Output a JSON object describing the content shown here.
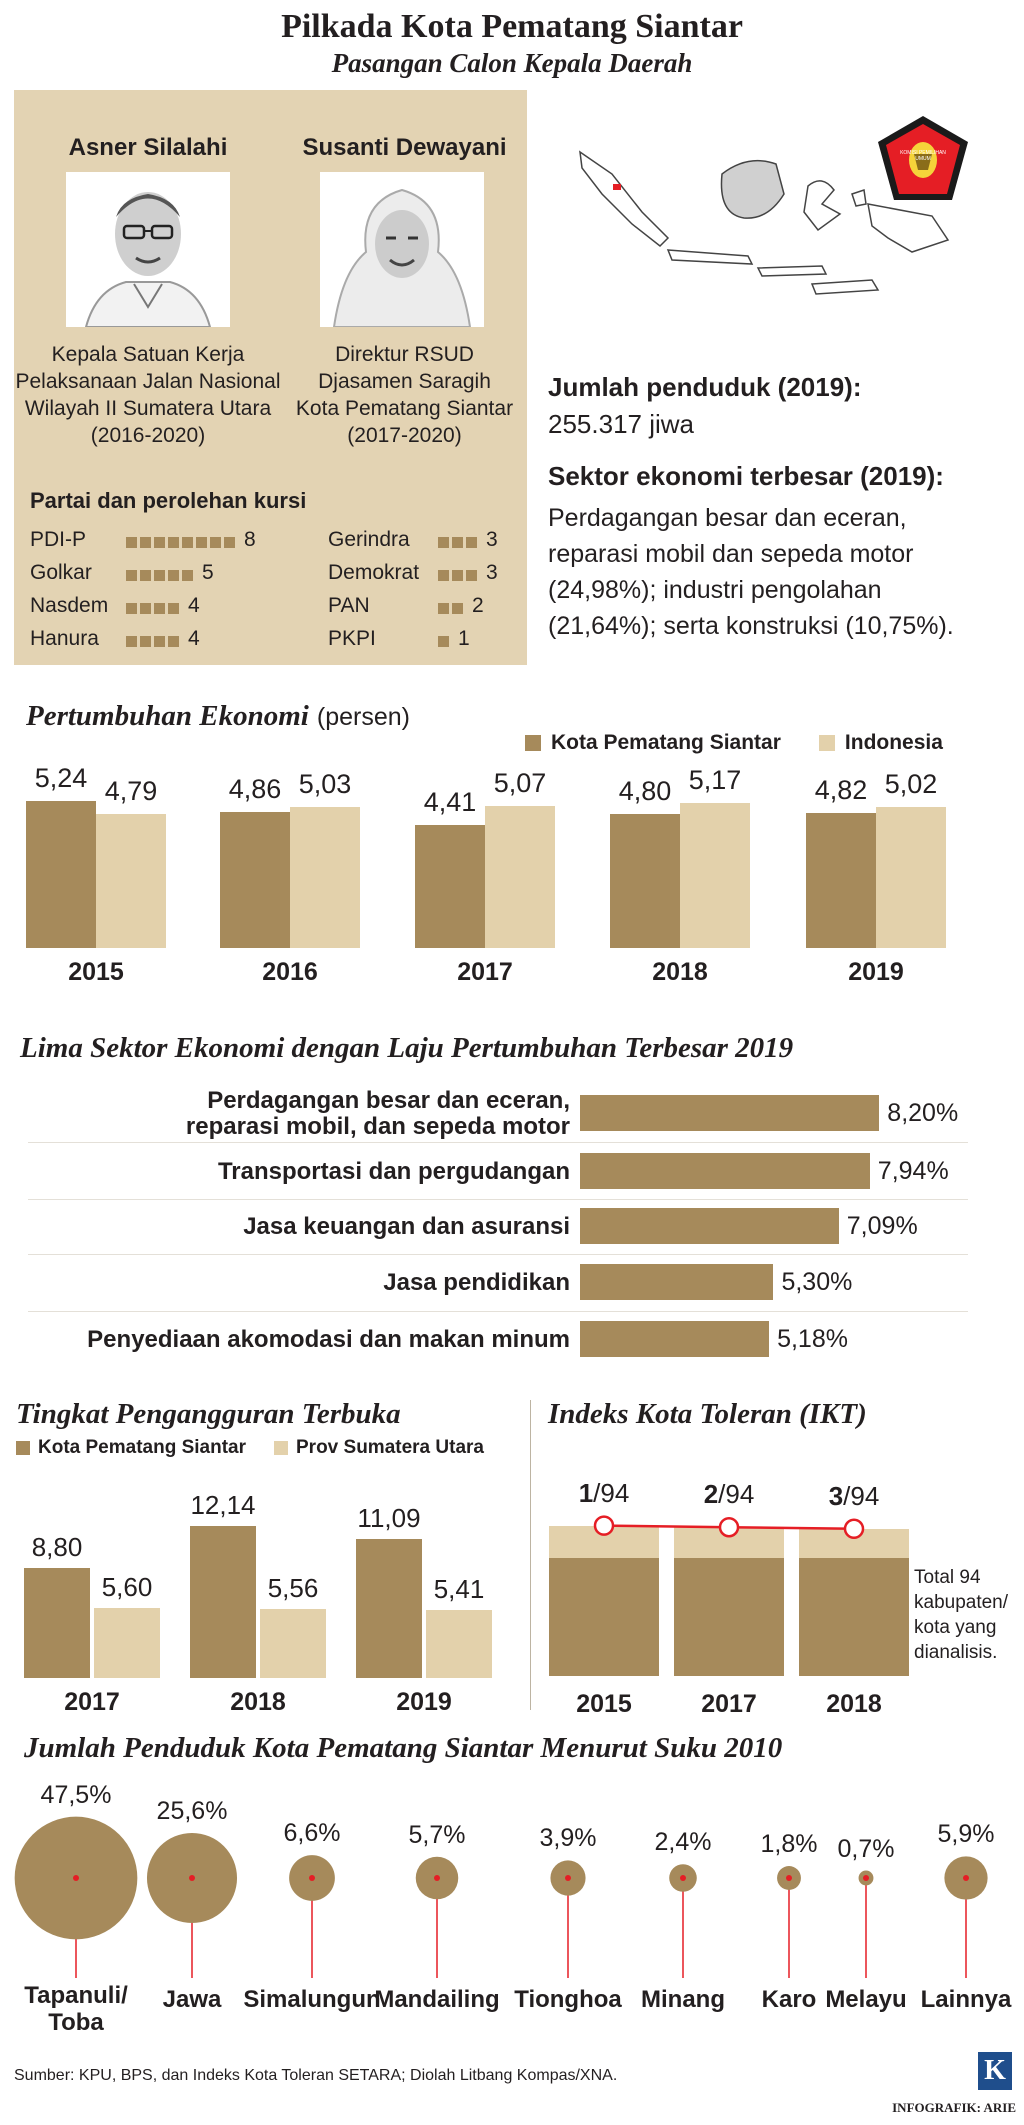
{
  "header": {
    "title": "Pilkada Kota Pematang Siantar",
    "subtitle": "Pasangan Calon Kepala Daerah"
  },
  "candidates": [
    {
      "name": "Asner Silalahi",
      "role_lines": [
        "Kepala Satuan Kerja",
        "Pelaksanaan Jalan Nasional",
        "Wilayah II Sumatera Utara",
        "(2016-2020)"
      ]
    },
    {
      "name": "Susanti Dewayani",
      "role_lines": [
        "Direktur RSUD",
        "Djasamen Saragih",
        "Kota Pematang Siantar",
        "(2017-2020)"
      ]
    }
  ],
  "parties": {
    "title": "Partai dan perolehan kursi",
    "items": [
      {
        "name": "PDI-P",
        "seats": 8
      },
      {
        "name": "Golkar",
        "seats": 5
      },
      {
        "name": "Nasdem",
        "seats": 4
      },
      {
        "name": "Hanura",
        "seats": 4
      },
      {
        "name": "Gerindra",
        "seats": 3
      },
      {
        "name": "Demokrat",
        "seats": 3
      },
      {
        "name": "PAN",
        "seats": 2
      },
      {
        "name": "PKPI",
        "seats": 1
      }
    ]
  },
  "logo": {
    "text": "KOMISI PEMILIHAN UMUM"
  },
  "population": {
    "label": "Jumlah penduduk (2019):",
    "value": "255.317 jiwa"
  },
  "economy": {
    "label": "Sektor ekonomi terbesar (2019):",
    "lines": [
      "Perdagangan besar dan eceran,",
      "reparasi mobil dan sepeda motor",
      "(24,98%); industri pengolahan",
      "(21,64%); serta konstruksi (10,75%)."
    ]
  },
  "growth": {
    "title": "Pertumbuhan Ekonomi",
    "unit": "(persen)",
    "legend": [
      "Kota Pematang Siantar",
      "Indonesia"
    ]
  },
  "sectors_section": {
    "title": "Lima Sektor Ekonomi dengan Laju Pertumbuhan Terbesar 2019"
  },
  "unemployment": {
    "title": "Tingkat Pengangguran Terbuka",
    "legend": [
      "Kota Pematang Siantar",
      "Prov Sumatera Utara"
    ]
  },
  "ikt": {
    "title": "Indeks Kota Toleran (IKT)",
    "note_lines": [
      "Total 94",
      "kabupaten/",
      "kota yang",
      "dianalisis."
    ]
  },
  "ethnic": {
    "title": "Jumlah Penduduk Kota Pematang Siantar Menurut Suku 2010"
  },
  "footer": {
    "source": "Sumber: KPU, BPS, dan Indeks Kota Toleran SETARA; Diolah Litbang Kompas/XNA.",
    "credit": "INFOGRAFIK: ARIE",
    "logo_letter": "K"
  },
  "colors": {
    "dark": "#a68a5b",
    "light": "#e3d1ab",
    "panel": "#e3d3b3",
    "red": "#e51e25"
  },
  "chart_data": [
    {
      "type": "bar",
      "title": "Pertumbuhan Ekonomi",
      "ylabel": "(persen)",
      "categories": [
        "2015",
        "2016",
        "2017",
        "2018",
        "2019"
      ],
      "series": [
        {
          "name": "Kota Pematang Siantar",
          "values": [
            5.24,
            4.86,
            4.41,
            4.8,
            4.82
          ],
          "labels": [
            "5,24",
            "4,86",
            "4,41",
            "4,80",
            "4,82"
          ]
        },
        {
          "name": "Indonesia",
          "values": [
            4.79,
            5.03,
            5.07,
            5.17,
            5.02
          ],
          "labels": [
            "4,79",
            "5,03",
            "5,07",
            "5,17",
            "5,02"
          ]
        }
      ]
    },
    {
      "type": "bar",
      "title": "Lima Sektor Ekonomi dengan Laju Pertumbuhan Terbesar 2019",
      "categories": [
        [
          "Perdagangan besar dan eceran,",
          "reparasi mobil, dan sepeda motor"
        ],
        [
          "Transportasi dan pergudangan"
        ],
        [
          "Jasa keuangan dan asuransi"
        ],
        [
          "Jasa pendidikan"
        ],
        [
          "Penyediaan akomodasi dan makan minum"
        ]
      ],
      "values": [
        8.2,
        7.94,
        7.09,
        5.3,
        5.18
      ],
      "labels": [
        "8,20%",
        "7,94%",
        "7,09%",
        "5,30%",
        "5,18%"
      ]
    },
    {
      "type": "bar",
      "title": "Tingkat Pengangguran Terbuka",
      "categories": [
        "2017",
        "2018",
        "2019"
      ],
      "series": [
        {
          "name": "Kota Pematang Siantar",
          "values": [
            8.8,
            12.14,
            11.09
          ],
          "labels": [
            "8,80",
            "12,14",
            "11,09"
          ]
        },
        {
          "name": "Prov Sumatera Utara",
          "values": [
            5.6,
            5.56,
            5.41
          ],
          "labels": [
            "5,60",
            "5,56",
            "5,41"
          ]
        }
      ]
    },
    {
      "type": "line",
      "title": "Indeks Kota Toleran (IKT)",
      "categories": [
        "2015",
        "2017",
        "2018"
      ],
      "values": [
        1,
        2,
        3
      ],
      "total": 94,
      "rank_labels": [
        "1",
        "2",
        "3"
      ],
      "suffix": "/94"
    },
    {
      "type": "scatter",
      "title": "Jumlah Penduduk Kota Pematang Siantar Menurut Suku 2010",
      "categories": [
        [
          "Tapanuli/",
          "Toba"
        ],
        [
          "Jawa"
        ],
        [
          "Simalungun"
        ],
        [
          "Mandailing"
        ],
        [
          "Tionghoa"
        ],
        [
          "Minang"
        ],
        [
          "Karo"
        ],
        [
          "Melayu"
        ],
        [
          "Lainnya"
        ]
      ],
      "values": [
        47.5,
        25.6,
        6.6,
        5.7,
        3.9,
        2.4,
        1.8,
        0.7,
        5.9
      ],
      "labels": [
        "47,5%",
        "25,6%",
        "6,6%",
        "5,7%",
        "3,9%",
        "2,4%",
        "1,8%",
        "0,7%",
        "5,9%"
      ]
    }
  ]
}
